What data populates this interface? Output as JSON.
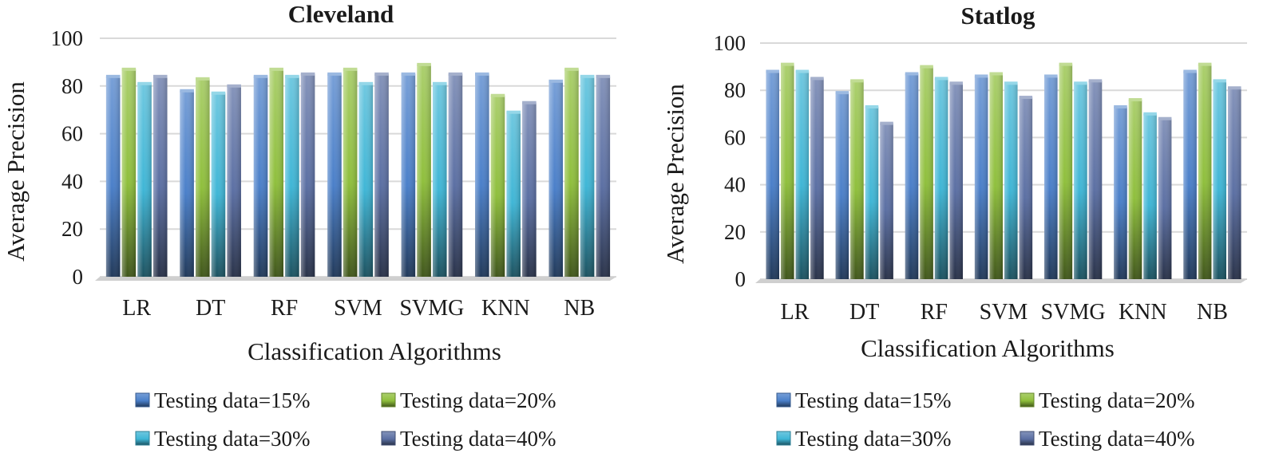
{
  "chart_data": [
    {
      "type": "bar",
      "title": "Cleveland",
      "xlabel": "Classification Algorithms",
      "ylabel": "Average Precision",
      "ylim": [
        0,
        100
      ],
      "yticks": [
        0,
        20,
        40,
        60,
        80,
        100
      ],
      "grid": true,
      "legend_position": "bottom",
      "categories": [
        "LR",
        "DT",
        "RF",
        "SVM",
        "SVMG",
        "KNN",
        "NB"
      ],
      "series": [
        {
          "name": "Testing data=15%",
          "color": "#4a7fc9",
          "values": [
            84,
            78,
            84,
            85,
            85,
            85,
            82
          ]
        },
        {
          "name": "Testing data=20%",
          "color": "#8fbf3c",
          "values": [
            87,
            83,
            87,
            87,
            89,
            76,
            87
          ]
        },
        {
          "name": "Testing data=30%",
          "color": "#3fb6d6",
          "values": [
            81,
            77,
            84,
            81,
            81,
            69,
            84
          ]
        },
        {
          "name": "Testing data=40%",
          "color": "#5b6fa3",
          "values": [
            84,
            80,
            85,
            85,
            85,
            73,
            84
          ]
        }
      ]
    },
    {
      "type": "bar",
      "title": "Statlog",
      "xlabel": "Classification Algorithms",
      "ylabel": "Average Precision",
      "ylim": [
        0,
        100
      ],
      "yticks": [
        0,
        20,
        40,
        60,
        80,
        100
      ],
      "grid": true,
      "legend_position": "bottom",
      "categories": [
        "LR",
        "DT",
        "RF",
        "SVM",
        "SVMG",
        "KNN",
        "NB"
      ],
      "series": [
        {
          "name": "Testing data=15%",
          "color": "#4a7fc9",
          "values": [
            88,
            79,
            87,
            86,
            86,
            73,
            88
          ]
        },
        {
          "name": "Testing data=20%",
          "color": "#8fbf3c",
          "values": [
            91,
            84,
            90,
            87,
            91,
            76,
            91
          ]
        },
        {
          "name": "Testing data=30%",
          "color": "#3fb6d6",
          "values": [
            88,
            73,
            85,
            83,
            83,
            70,
            84
          ]
        },
        {
          "name": "Testing data=40%",
          "color": "#5b6fa3",
          "values": [
            85,
            66,
            83,
            77,
            84,
            68,
            81
          ]
        }
      ]
    }
  ]
}
